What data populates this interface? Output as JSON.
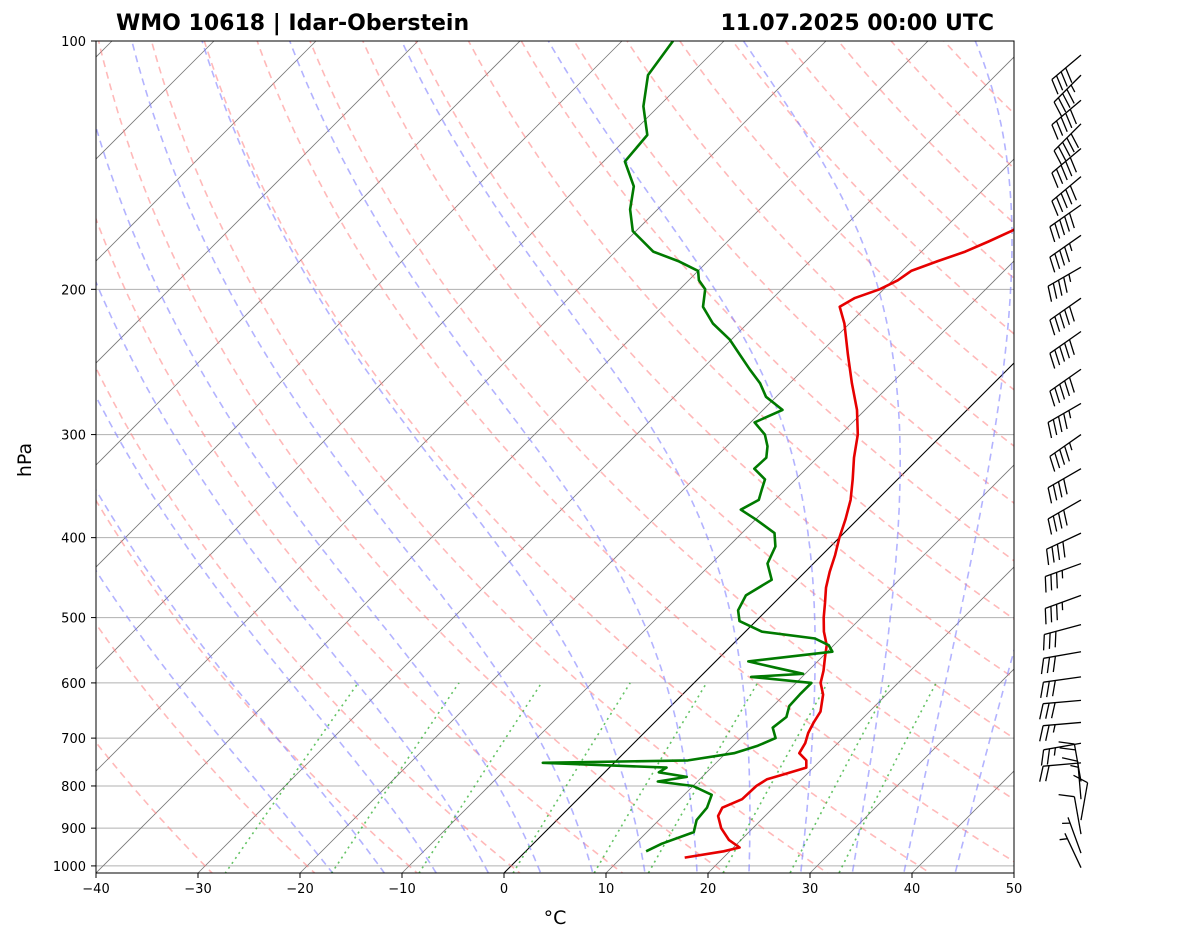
{
  "chart_data": {
    "type": "skew-t",
    "title_left": "WMO 10618 | Idar-Oberstein",
    "title_right": "11.07.2025 00:00 UTC",
    "xlabel": "°C",
    "ylabel": "hPa",
    "xlim": [
      -40,
      50
    ],
    "ylim": [
      1020,
      100
    ],
    "log_pressure_axis": true,
    "grid": true,
    "x_ticks": [
      -40,
      -30,
      -20,
      -10,
      0,
      10,
      20,
      30,
      40,
      50
    ],
    "x_tick_labels": [
      "−40",
      "−30",
      "−20",
      "−10",
      "0",
      "10",
      "20",
      "30",
      "40",
      "50"
    ],
    "y_ticks": [
      1000,
      900,
      800,
      700,
      600,
      500,
      400,
      300,
      200,
      100
    ],
    "y_tick_labels": [
      "1000",
      "900",
      "800",
      "700",
      "600",
      "500",
      "400",
      "300",
      "200",
      "100"
    ],
    "zero_isotherm": 0,
    "dry_adiabats_theta_C": [
      -30,
      -20,
      -10,
      0,
      10,
      20,
      30,
      40,
      50,
      60,
      70,
      80,
      90,
      100,
      110,
      120,
      130,
      140,
      150,
      160,
      170,
      180
    ],
    "moist_adiabats_C": [
      -15,
      -10,
      -5,
      0,
      5,
      10,
      15,
      20,
      25,
      30,
      35,
      40,
      45
    ],
    "mixing_ratio_lines_gkg": [
      0.4,
      1,
      2,
      4,
      7,
      10,
      16,
      24,
      32
    ],
    "colors": {
      "temperature": "#e60000",
      "dewpoint": "#007a00",
      "dry_adiabat": "#ff8080",
      "moist_adiabat": "#8080ff",
      "mixing_ratio": "#22aa22",
      "isotherm": "#777777",
      "grid": "#b0b0b0",
      "barb": "#000000"
    },
    "series": [
      {
        "name": "Temperature",
        "points": [
          [
            977,
            16.2
          ],
          [
            960,
            19.4
          ],
          [
            950,
            20.6
          ],
          [
            930,
            18.8
          ],
          [
            900,
            16.9
          ],
          [
            870,
            15.4
          ],
          [
            850,
            15.0
          ],
          [
            830,
            16.1
          ],
          [
            800,
            16.2
          ],
          [
            785,
            16.6
          ],
          [
            775,
            17.7
          ],
          [
            760,
            19.3
          ],
          [
            745,
            18.6
          ],
          [
            730,
            17.2
          ],
          [
            710,
            16.8
          ],
          [
            690,
            16.1
          ],
          [
            670,
            15.6
          ],
          [
            650,
            15.2
          ],
          [
            620,
            13.8
          ],
          [
            600,
            12.4
          ],
          [
            580,
            11.5
          ],
          [
            560,
            10.4
          ],
          [
            540,
            9.3
          ],
          [
            520,
            7.7
          ],
          [
            500,
            6.3
          ],
          [
            480,
            5.0
          ],
          [
            460,
            3.6
          ],
          [
            440,
            2.4
          ],
          [
            420,
            1.3
          ],
          [
            400,
            0.0
          ],
          [
            380,
            -1.2
          ],
          [
            360,
            -2.6
          ],
          [
            340,
            -4.4
          ],
          [
            320,
            -6.4
          ],
          [
            300,
            -8.3
          ],
          [
            280,
            -10.8
          ],
          [
            260,
            -13.9
          ],
          [
            240,
            -17.1
          ],
          [
            220,
            -20.5
          ],
          [
            210,
            -22.6
          ],
          [
            205,
            -22.0
          ],
          [
            200,
            -20.4
          ],
          [
            195,
            -19.5
          ],
          [
            190,
            -19.1
          ],
          [
            185,
            -17.5
          ],
          [
            180,
            -15.7
          ],
          [
            175,
            -14.4
          ],
          [
            170,
            -13.2
          ],
          [
            165,
            -12.4
          ],
          [
            160,
            -12.4
          ],
          [
            155,
            -13.5
          ],
          [
            150,
            -14.4
          ],
          [
            145,
            -15.2
          ],
          [
            140,
            -16.1
          ],
          [
            135,
            -17.4
          ],
          [
            130,
            -18.5
          ],
          [
            125,
            -19.5
          ],
          [
            120,
            -20.5
          ],
          [
            115,
            -22.0
          ],
          [
            110,
            -23.6
          ],
          [
            105,
            -25.0
          ],
          [
            100,
            -26.9
          ]
        ]
      },
      {
        "name": "Dewpoint",
        "points": [
          [
            960,
            11.8
          ],
          [
            940,
            12.6
          ],
          [
            910,
            14.6
          ],
          [
            880,
            13.7
          ],
          [
            850,
            13.5
          ],
          [
            820,
            12.7
          ],
          [
            800,
            10.0
          ],
          [
            790,
            6.1
          ],
          [
            780,
            8.5
          ],
          [
            770,
            5.3
          ],
          [
            760,
            5.6
          ],
          [
            750,
            -7.0
          ],
          [
            745,
            7.0
          ],
          [
            730,
            10.8
          ],
          [
            715,
            12.4
          ],
          [
            700,
            13.4
          ],
          [
            680,
            12.1
          ],
          [
            660,
            12.4
          ],
          [
            640,
            11.6
          ],
          [
            620,
            11.5
          ],
          [
            600,
            11.5
          ],
          [
            590,
            5.0
          ],
          [
            585,
            9.8
          ],
          [
            575,
            6.5
          ],
          [
            565,
            3.2
          ],
          [
            550,
            10.5
          ],
          [
            540,
            9.5
          ],
          [
            530,
            7.5
          ],
          [
            520,
            1.6
          ],
          [
            505,
            -1.6
          ],
          [
            490,
            -2.8
          ],
          [
            470,
            -3.5
          ],
          [
            450,
            -2.5
          ],
          [
            430,
            -4.5
          ],
          [
            410,
            -5.4
          ],
          [
            395,
            -6.8
          ],
          [
            380,
            -10.0
          ],
          [
            370,
            -12.4
          ],
          [
            360,
            -11.6
          ],
          [
            350,
            -12.3
          ],
          [
            340,
            -13.0
          ],
          [
            330,
            -15.1
          ],
          [
            320,
            -15.0
          ],
          [
            310,
            -16.0
          ],
          [
            300,
            -17.4
          ],
          [
            290,
            -19.6
          ],
          [
            280,
            -18.1
          ],
          [
            270,
            -21.0
          ],
          [
            260,
            -22.9
          ],
          [
            250,
            -25.3
          ],
          [
            240,
            -27.7
          ],
          [
            230,
            -30.2
          ],
          [
            220,
            -33.4
          ],
          [
            210,
            -36.0
          ],
          [
            200,
            -37.5
          ],
          [
            195,
            -39.0
          ],
          [
            190,
            -40.0
          ],
          [
            185,
            -42.8
          ],
          [
            180,
            -46.3
          ],
          [
            170,
            -50.3
          ],
          [
            160,
            -52.7
          ],
          [
            150,
            -54.6
          ],
          [
            140,
            -57.9
          ],
          [
            130,
            -58.3
          ],
          [
            120,
            -61.5
          ],
          [
            110,
            -64.1
          ],
          [
            100,
            -65.0
          ]
        ]
      }
    ],
    "wind_barbs": [
      {
        "p": 1005,
        "dir": 335,
        "spd": 5
      },
      {
        "p": 965,
        "dir": 340,
        "spd": 5
      },
      {
        "p": 915,
        "dir": 350,
        "spd": 10
      },
      {
        "p": 880,
        "dir": 10,
        "spd": 10
      },
      {
        "p": 830,
        "dir": 355,
        "spd": 15
      },
      {
        "p": 790,
        "dir": 350,
        "spd": 20
      },
      {
        "p": 750,
        "dir": 265,
        "spd": 20
      },
      {
        "p": 710,
        "dir": 260,
        "spd": 25
      },
      {
        "p": 670,
        "dir": 265,
        "spd": 25
      },
      {
        "p": 630,
        "dir": 265,
        "spd": 30
      },
      {
        "p": 590,
        "dir": 262,
        "spd": 30
      },
      {
        "p": 550,
        "dir": 260,
        "spd": 30
      },
      {
        "p": 510,
        "dir": 255,
        "spd": 30
      },
      {
        "p": 470,
        "dir": 250,
        "spd": 35
      },
      {
        "p": 430,
        "dir": 250,
        "spd": 35
      },
      {
        "p": 395,
        "dir": 245,
        "spd": 40
      },
      {
        "p": 360,
        "dir": 240,
        "spd": 40
      },
      {
        "p": 330,
        "dir": 240,
        "spd": 40
      },
      {
        "p": 300,
        "dir": 235,
        "spd": 45
      },
      {
        "p": 275,
        "dir": 240,
        "spd": 45
      },
      {
        "p": 250,
        "dir": 235,
        "spd": 50
      },
      {
        "p": 225,
        "dir": 235,
        "spd": 50
      },
      {
        "p": 205,
        "dir": 235,
        "spd": 50
      },
      {
        "p": 188,
        "dir": 240,
        "spd": 45
      },
      {
        "p": 172,
        "dir": 235,
        "spd": 45
      },
      {
        "p": 158,
        "dir": 235,
        "spd": 50
      },
      {
        "p": 146,
        "dir": 230,
        "spd": 50
      },
      {
        "p": 135,
        "dir": 230,
        "spd": 50
      },
      {
        "p": 126,
        "dir": 225,
        "spd": 50
      },
      {
        "p": 118,
        "dir": 230,
        "spd": 50
      },
      {
        "p": 110,
        "dir": 225,
        "spd": 45
      },
      {
        "p": 104,
        "dir": 230,
        "spd": 40
      }
    ]
  }
}
